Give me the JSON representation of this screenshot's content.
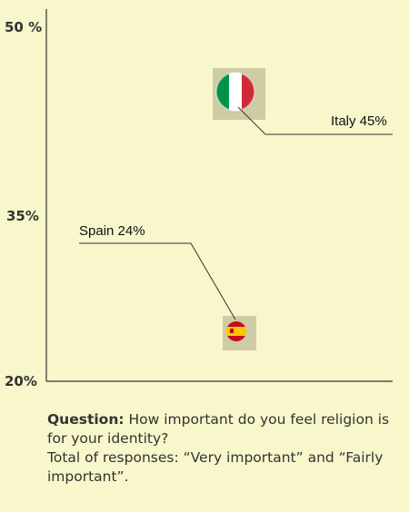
{
  "chart_data": {
    "type": "scatter",
    "y_axis": {
      "ylim": [
        20,
        50
      ],
      "ticks": [
        {
          "value": 50,
          "label": "50 %"
        },
        {
          "value": 35,
          "label": "35%"
        },
        {
          "value": 20,
          "label": "20%"
        }
      ]
    },
    "points": [
      {
        "country": "Italy",
        "value": 45,
        "label": "Italy 45%",
        "flag": "italy-flag-icon",
        "colors": [
          "#009246",
          "#ffffff",
          "#ce2b37"
        ]
      },
      {
        "country": "Spain",
        "value": 24,
        "label": "Spain 24%",
        "flag": "spain-flag-icon",
        "colors": [
          "#c60b1e",
          "#ffc400",
          "#c60b1e"
        ]
      }
    ],
    "grid": false,
    "legend": "none",
    "marker_background": "#cdcca4",
    "axis_color": "#333333"
  },
  "caption": {
    "question_label": "Question:",
    "question_text": " How important do you feel religion is for your identity?",
    "total_text": "Total of responses: “Very important” and “Fairly important”."
  }
}
